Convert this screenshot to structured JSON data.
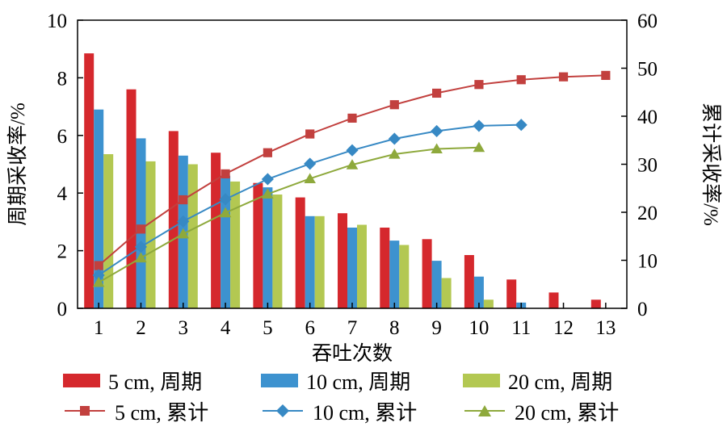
{
  "chart_data": {
    "type": "bar+line",
    "categories": [
      1,
      2,
      3,
      4,
      5,
      6,
      7,
      8,
      9,
      10,
      11,
      12,
      13
    ],
    "bar_series": [
      {
        "name": "5 cm, 周期",
        "color": "#d5282d",
        "values": [
          8.85,
          7.6,
          6.15,
          5.4,
          4.35,
          3.85,
          3.3,
          2.8,
          2.4,
          1.85,
          1.0,
          0.55,
          0.3
        ]
      },
      {
        "name": "10 cm, 周期",
        "color": "#3d92cf",
        "values": [
          6.9,
          5.9,
          5.3,
          4.6,
          4.2,
          3.2,
          2.8,
          2.35,
          1.65,
          1.1,
          0.2,
          null,
          null
        ]
      },
      {
        "name": "20 cm, 周期",
        "color": "#b3c852",
        "values": [
          5.35,
          5.1,
          5.0,
          4.4,
          3.95,
          3.2,
          2.9,
          2.2,
          1.05,
          0.3,
          null,
          null,
          null
        ]
      }
    ],
    "line_series": [
      {
        "name": "5 cm, 累计",
        "color": "#c2403e",
        "marker": "square",
        "values": [
          8.9,
          16.5,
          22.6,
          28.0,
          32.4,
          36.3,
          39.6,
          42.4,
          44.8,
          46.6,
          47.6,
          48.2,
          48.5
        ]
      },
      {
        "name": "10 cm, 累计",
        "color": "#3789c4",
        "marker": "diamond",
        "values": [
          6.9,
          12.8,
          18.1,
          22.7,
          26.9,
          30.1,
          32.9,
          35.3,
          36.9,
          38.0,
          38.2,
          null,
          null
        ]
      },
      {
        "name": "20 cm, 累计",
        "color": "#8ea93c",
        "marker": "triangle",
        "values": [
          5.4,
          10.5,
          15.5,
          19.9,
          23.8,
          27.0,
          29.9,
          32.1,
          33.2,
          33.5,
          null,
          null,
          null
        ]
      }
    ],
    "left_axis": {
      "label": "周期采收率/%",
      "min": 0,
      "max": 10,
      "ticks": [
        0,
        2,
        4,
        6,
        8,
        10
      ]
    },
    "right_axis": {
      "label": "累计采收率/%",
      "min": 0,
      "max": 60,
      "ticks": [
        0,
        10,
        20,
        30,
        40,
        50,
        60
      ]
    },
    "x_axis": {
      "label": "吞吐次数"
    },
    "legend_position": "bottom",
    "grid": false
  }
}
